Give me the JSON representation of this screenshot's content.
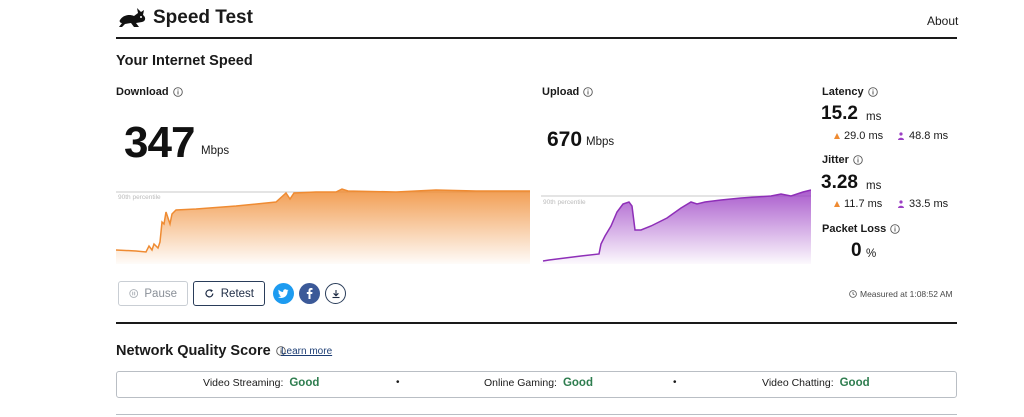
{
  "header": {
    "brand": "Speed Test",
    "about_link": "About",
    "logo_icon": "rabbit-logo-icon"
  },
  "section_title": "Your Internet Speed",
  "download": {
    "label": "Download",
    "value": "347",
    "unit": "Mbps",
    "percentile_label": "90th percentile",
    "color": "#ef8b32"
  },
  "upload": {
    "label": "Upload",
    "value": "670",
    "unit": "Mbps",
    "percentile_label": "90th percentile",
    "color": "#9b3fc4"
  },
  "latency": {
    "label": "Latency",
    "value": "15.2",
    "unit": "ms",
    "download_value": "29.0 ms",
    "upload_value": "48.8 ms"
  },
  "jitter": {
    "label": "Jitter",
    "value": "3.28",
    "unit": "ms",
    "download_value": "11.7 ms",
    "upload_value": "33.5 ms"
  },
  "packet_loss": {
    "label": "Packet Loss",
    "value": "0",
    "unit": "%"
  },
  "actions": {
    "pause_label": "Pause",
    "retest_label": "Retest",
    "twitter_icon": "twitter-icon",
    "facebook_icon": "facebook-icon",
    "download_icon": "download-icon"
  },
  "measured_at": "Measured at 1:08:52 AM",
  "network_quality": {
    "title": "Network Quality Score",
    "learn_more": "Learn more",
    "items": [
      {
        "label": "Video Streaming:",
        "rating": "Good"
      },
      {
        "label": "Online Gaming:",
        "rating": "Good"
      },
      {
        "label": "Video Chatting:",
        "rating": "Good"
      }
    ],
    "good_color": "#2e7d4f"
  }
}
